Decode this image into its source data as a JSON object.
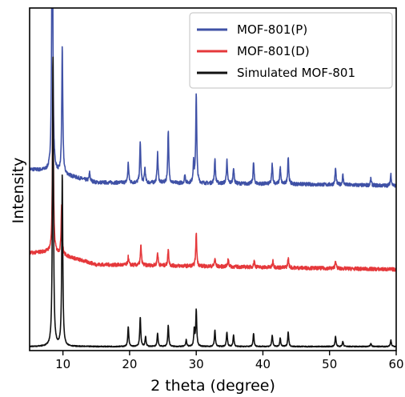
{
  "chart_data": {
    "type": "line",
    "xlabel": "2 theta (degree)",
    "ylabel": "Intensity",
    "xlim": [
      5,
      60
    ],
    "xticks": [
      10,
      20,
      30,
      40,
      50,
      60
    ],
    "y_ticks_shown": false,
    "grid": false,
    "legend_position": "top-right",
    "series": [
      {
        "name": "MOF-801(P)",
        "color": "#3f51a6",
        "offset": 0.98,
        "baseline_points": [
          [
            5,
            0.1
          ],
          [
            8,
            0.09
          ],
          [
            15,
            0.02
          ],
          [
            30,
            0.015
          ],
          [
            45,
            0.01
          ],
          [
            60,
            0.0
          ]
        ],
        "peaks": [
          [
            8.4,
            2.0
          ],
          [
            9.9,
            0.78
          ],
          [
            14.0,
            0.05
          ],
          [
            19.8,
            0.12
          ],
          [
            21.6,
            0.25
          ],
          [
            22.3,
            0.09
          ],
          [
            24.2,
            0.18
          ],
          [
            25.8,
            0.32
          ],
          [
            28.3,
            0.05
          ],
          [
            29.6,
            0.12
          ],
          [
            30.0,
            0.55
          ],
          [
            32.8,
            0.15
          ],
          [
            34.6,
            0.14
          ],
          [
            35.6,
            0.1
          ],
          [
            38.6,
            0.13
          ],
          [
            41.4,
            0.12
          ],
          [
            42.6,
            0.1
          ],
          [
            43.8,
            0.17
          ],
          [
            50.9,
            0.1
          ],
          [
            52.0,
            0.06
          ],
          [
            56.2,
            0.04
          ],
          [
            59.2,
            0.07
          ]
        ]
      },
      {
        "name": "MOF-801(D)",
        "color": "#e5383b",
        "offset": 0.47,
        "baseline_points": [
          [
            5,
            0.1
          ],
          [
            8,
            0.11
          ],
          [
            15,
            0.03
          ],
          [
            30,
            0.02
          ],
          [
            45,
            0.01
          ],
          [
            60,
            0.0
          ]
        ],
        "peaks": [
          [
            8.5,
            1.0
          ],
          [
            9.8,
            0.3
          ],
          [
            19.8,
            0.05
          ],
          [
            21.7,
            0.12
          ],
          [
            24.2,
            0.08
          ],
          [
            25.8,
            0.1
          ],
          [
            30.0,
            0.2
          ],
          [
            32.8,
            0.05
          ],
          [
            34.8,
            0.05
          ],
          [
            38.7,
            0.04
          ],
          [
            41.5,
            0.04
          ],
          [
            43.8,
            0.06
          ],
          [
            50.9,
            0.05
          ]
        ]
      },
      {
        "name": "Simulated MOF-801",
        "color": "#111111",
        "offset": 0.0,
        "baseline_points": [
          [
            5,
            0.0
          ],
          [
            60,
            0.0
          ]
        ],
        "peaks": [
          [
            8.5,
            1.78
          ],
          [
            9.9,
            1.05
          ],
          [
            19.8,
            0.12
          ],
          [
            21.6,
            0.18
          ],
          [
            22.4,
            0.06
          ],
          [
            24.2,
            0.08
          ],
          [
            25.8,
            0.13
          ],
          [
            28.5,
            0.04
          ],
          [
            29.7,
            0.1
          ],
          [
            30.0,
            0.22
          ],
          [
            32.8,
            0.1
          ],
          [
            34.6,
            0.09
          ],
          [
            35.6,
            0.07
          ],
          [
            38.6,
            0.08
          ],
          [
            41.4,
            0.07
          ],
          [
            42.6,
            0.05
          ],
          [
            43.8,
            0.09
          ],
          [
            50.9,
            0.06
          ],
          [
            52.0,
            0.03
          ],
          [
            56.2,
            0.02
          ],
          [
            59.2,
            0.04
          ]
        ]
      }
    ]
  }
}
